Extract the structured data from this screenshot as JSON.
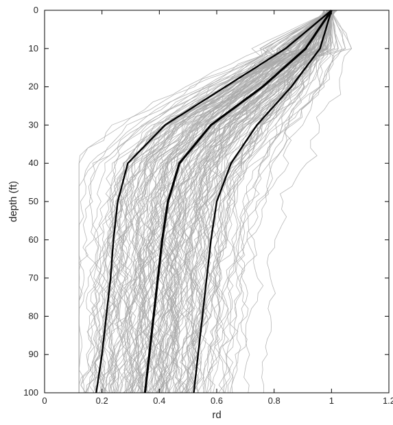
{
  "chart_data": {
    "type": "line",
    "title": "",
    "xlabel": "rd",
    "ylabel": "depth (ft)",
    "xlim": [
      0,
      1.2
    ],
    "ylim": [
      0,
      100
    ],
    "y_axis_inverted": true,
    "grid": false,
    "xticks": [
      "0",
      "0.2",
      "0.4",
      "0.6",
      "0.8",
      "1",
      "1.2"
    ],
    "yticks": [
      "0",
      "10",
      "20",
      "30",
      "40",
      "50",
      "60",
      "70",
      "80",
      "90",
      "100"
    ],
    "colors": {
      "realizations": "#a9a9a9",
      "summary": "#000000"
    },
    "realizations_count_estimate": 150,
    "series": [
      {
        "role": "lower",
        "depth": [
          0,
          10,
          20,
          30,
          40,
          50,
          60,
          70,
          80,
          90,
          100
        ],
        "rd": [
          1.0,
          0.84,
          0.63,
          0.42,
          0.29,
          0.255,
          0.24,
          0.23,
          0.215,
          0.2,
          0.18
        ]
      },
      {
        "role": "median",
        "depth": [
          0,
          10,
          20,
          30,
          40,
          50,
          60,
          70,
          80,
          90,
          100
        ],
        "rd": [
          1.0,
          0.91,
          0.76,
          0.58,
          0.47,
          0.43,
          0.41,
          0.395,
          0.38,
          0.365,
          0.35
        ]
      },
      {
        "role": "upper",
        "depth": [
          0,
          10,
          20,
          30,
          40,
          50,
          60,
          70,
          80,
          90,
          100
        ],
        "rd": [
          1.0,
          0.96,
          0.86,
          0.74,
          0.65,
          0.6,
          0.58,
          0.565,
          0.55,
          0.535,
          0.52
        ]
      }
    ]
  }
}
